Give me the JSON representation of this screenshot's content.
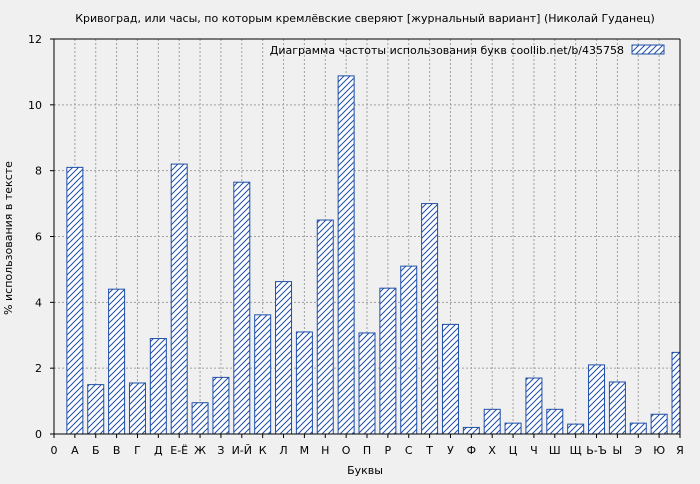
{
  "chart_data": {
    "type": "bar",
    "title": "Кривоград, или часы, по которым кремлёвские сверяют [журнальный вариант] (Николай Гуданец)",
    "xlabel": "Буквы",
    "ylabel": "% использования в тексте",
    "legend": {
      "label": "Диаграмма частоты использования букв  coollib.net/b/435758",
      "position": "top-right"
    },
    "ylim": [
      0,
      12
    ],
    "yticks": [
      "0",
      "2",
      "4",
      "6",
      "8",
      "10",
      "12"
    ],
    "grid": true,
    "colors": {
      "bar_stroke": "#1f4fa8",
      "hatch": "#1f4fa8",
      "bar_fill": "#ffffff",
      "grid": "#a0a0a0"
    },
    "categories": [
      "0",
      "А",
      "Б",
      "В",
      "Г",
      "Д",
      "Е-Ё",
      "Ж",
      "З",
      "И-Й",
      "К",
      "Л",
      "М",
      "Н",
      "О",
      "П",
      "Р",
      "С",
      "Т",
      "У",
      "Ф",
      "Х",
      "Ц",
      "Ч",
      "Ш",
      "Щ",
      "Ь-Ъ",
      "Ы",
      "Э",
      "Ю",
      "Я"
    ],
    "values": [
      null,
      8.1,
      1.5,
      4.4,
      1.55,
      2.9,
      8.2,
      0.95,
      1.72,
      7.65,
      3.62,
      4.63,
      3.1,
      6.5,
      10.88,
      3.07,
      4.43,
      5.1,
      7.0,
      3.33,
      0.2,
      0.75,
      0.33,
      1.7,
      0.75,
      0.3,
      2.1,
      1.58,
      0.33,
      0.6,
      2.48
    ]
  }
}
